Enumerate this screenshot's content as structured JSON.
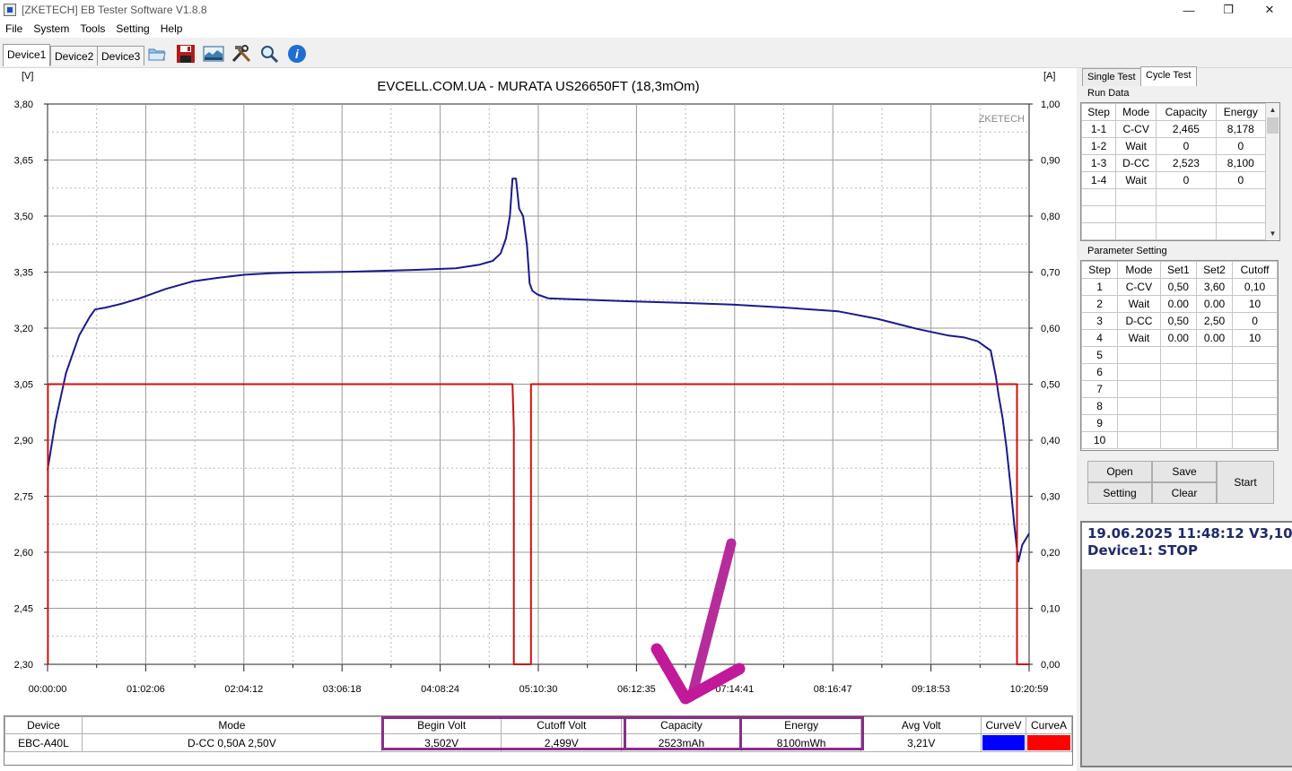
{
  "window": {
    "title": "[ZKETECH] EB Tester Software V1.8.8",
    "min_glyph": "—",
    "max_glyph": "❐",
    "close_glyph": "✕"
  },
  "menu": [
    "File",
    "System",
    "Tools",
    "Setting",
    "Help"
  ],
  "device_tabs": [
    "Device1",
    "Device2",
    "Device3"
  ],
  "toolbar_icons": [
    "open-folder-icon",
    "save-icon",
    "chart-image-icon",
    "tools-icon",
    "search-icon",
    "info-icon"
  ],
  "chart_data": {
    "type": "line",
    "title": "EVCELL.COM.UA - MURATA US26650FT (18,3mOm)",
    "watermark": "ZKETECH",
    "y_left_unit": "[V]",
    "y_right_unit": "[A]",
    "y_left_ticks": [
      "3,80",
      "3,65",
      "3,50",
      "3,35",
      "3,20",
      "3,05",
      "2,90",
      "2,75",
      "2,60",
      "2,45",
      "2,30"
    ],
    "y_right_ticks": [
      "1,00",
      "0,90",
      "0,80",
      "0,70",
      "0,60",
      "0,50",
      "0,40",
      "0,30",
      "0,20",
      "0,10",
      "0,00"
    ],
    "x_ticks": [
      "00:00:00",
      "01:02:06",
      "02:04:12",
      "03:06:18",
      "04:08:24",
      "05:10:30",
      "06:12:35",
      "07:14:41",
      "08:16:47",
      "09:18:53",
      "10:20:59"
    ],
    "ylim_left": [
      2.3,
      3.8
    ],
    "ylim_right": [
      0,
      1.0
    ],
    "x_range_seconds": [
      0,
      37259
    ],
    "grid": true,
    "series": [
      {
        "color": "#1a1a8c",
        "axis": "left",
        "x_seconds": [
          0,
          300,
          700,
          1200,
          1600,
          1800,
          2200,
          2800,
          3500,
          4500,
          5500,
          6500,
          7500,
          8500,
          9500,
          10500,
          11500,
          12500,
          14000,
          15500,
          16400,
          16900,
          17200,
          17400,
          17550,
          17650,
          17780,
          17900,
          18050,
          18200,
          18300,
          18400,
          18600,
          19000,
          20000,
          22000,
          24000,
          26000,
          28000,
          30000,
          31500,
          33000,
          34200,
          34800,
          35300,
          35800,
          36000,
          36100,
          36250,
          36400,
          36550,
          36700,
          36850,
          37000,
          37259
        ],
        "volts": [
          2.82,
          2.95,
          3.08,
          3.18,
          3.23,
          3.25,
          3.255,
          3.265,
          3.28,
          3.305,
          3.325,
          3.335,
          3.343,
          3.347,
          3.349,
          3.35,
          3.351,
          3.353,
          3.356,
          3.36,
          3.37,
          3.38,
          3.4,
          3.44,
          3.5,
          3.6,
          3.6,
          3.52,
          3.5,
          3.42,
          3.32,
          3.3,
          3.29,
          3.28,
          3.277,
          3.272,
          3.268,
          3.263,
          3.255,
          3.245,
          3.225,
          3.198,
          3.18,
          3.175,
          3.165,
          3.14,
          3.07,
          3.02,
          2.96,
          2.88,
          2.78,
          2.67,
          2.575,
          2.62,
          2.65
        ]
      },
      {
        "color": "#cc1111",
        "axis": "right",
        "x_seconds": [
          0,
          15,
          15,
          17650,
          17700,
          17700,
          18350,
          18350,
          18540,
          18550,
          18550,
          36800,
          36800,
          37259
        ],
        "amps": [
          0,
          0,
          0.5,
          0.5,
          0.42,
          0,
          0,
          0.5,
          0.5,
          0.5,
          0.5,
          0.5,
          0,
          0
        ]
      }
    ]
  },
  "right_panel": {
    "tabs": [
      "Single Test",
      "Cycle Test"
    ],
    "run_data_label": "Run Data",
    "run_data_headers": [
      "Step",
      "Mode",
      "Capacity",
      "Energy"
    ],
    "run_data_rows": [
      [
        "1-1",
        "C-CV",
        "2,465",
        "8,178"
      ],
      [
        "1-2",
        "Wait",
        "0",
        "0"
      ],
      [
        "1-3",
        "D-CC",
        "2,523",
        "8,100"
      ],
      [
        "1-4",
        "Wait",
        "0",
        "0"
      ],
      [
        "",
        "",
        "",
        ""
      ],
      [
        "",
        "",
        "",
        ""
      ],
      [
        "",
        "",
        "",
        ""
      ]
    ],
    "param_label": "Parameter Setting",
    "param_headers": [
      "Step",
      "Mode",
      "Set1",
      "Set2",
      "Cutoff"
    ],
    "param_rows": [
      [
        "1",
        "C-CV",
        "0,50",
        "3,60",
        "0,10"
      ],
      [
        "2",
        "Wait",
        "0.00",
        "0.00",
        "10"
      ],
      [
        "3",
        "D-CC",
        "0,50",
        "2,50",
        "0"
      ],
      [
        "4",
        "Wait",
        "0.00",
        "0.00",
        "10"
      ],
      [
        "5",
        "",
        "",
        "",
        ""
      ],
      [
        "6",
        "",
        "",
        "",
        ""
      ],
      [
        "7",
        "",
        "",
        "",
        ""
      ],
      [
        "8",
        "",
        "",
        "",
        ""
      ],
      [
        "9",
        "",
        "",
        "",
        ""
      ],
      [
        "10",
        "",
        "",
        "",
        ""
      ]
    ],
    "buttons": {
      "open": "Open",
      "save": "Save",
      "setting": "Setting",
      "clear": "Clear",
      "start": "Start"
    },
    "status_line1": "19.06.2025 11:48:12  V3,10",
    "status_line2": "Device1: STOP"
  },
  "bottom_table": {
    "headers": [
      "Device",
      "Mode",
      "Begin Volt",
      "Cutoff Volt",
      "Capacity",
      "Energy",
      "Avg Volt",
      "CurveV",
      "CurveA"
    ],
    "values": [
      "EBC-A40L",
      "D-CC  0,50A  2,50V",
      "3,502V",
      "2,499V",
      "2523mAh",
      "8100mWh",
      "3,21V",
      "",
      ""
    ],
    "curve_v_color": "#0000ff",
    "curve_a_color": "#ff0000"
  },
  "annotation": {
    "arrow_color": "#b52c9b",
    "box_color": "#8b2c8b"
  }
}
